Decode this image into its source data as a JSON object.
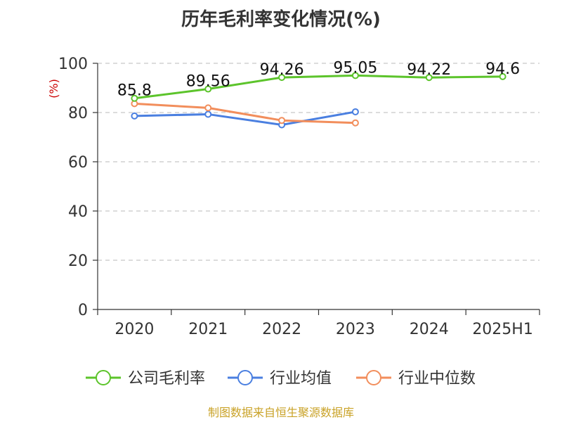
{
  "chart_data": {
    "type": "line",
    "title": "历年毛利率变化情况(%)",
    "ylabel": "(%)",
    "categories": [
      "2020",
      "2021",
      "2022",
      "2023",
      "2024",
      "2025H1"
    ],
    "ylim": [
      0,
      100
    ],
    "yticks": [
      0,
      20,
      40,
      60,
      80,
      100
    ],
    "grid": "horizontal-dashed",
    "legend_position": "bottom",
    "series": [
      {
        "name": "公司毛利率",
        "color": "#5cc42b",
        "values": [
          85.8,
          89.56,
          94.26,
          95.05,
          94.22,
          94.6
        ],
        "labels": [
          "85.8",
          "89.56",
          "94.26",
          "95.05",
          "94.22",
          "94.6"
        ]
      },
      {
        "name": "行业均值",
        "color": "#4a7fe0",
        "values": [
          78.6,
          79.3,
          75.0,
          80.3,
          null,
          null
        ]
      },
      {
        "name": "行业中位数",
        "color": "#f28e5c",
        "values": [
          83.6,
          81.9,
          76.8,
          75.8,
          null,
          null
        ]
      }
    ]
  },
  "footer": {
    "source": "制图数据来自恒生聚源数据库"
  }
}
